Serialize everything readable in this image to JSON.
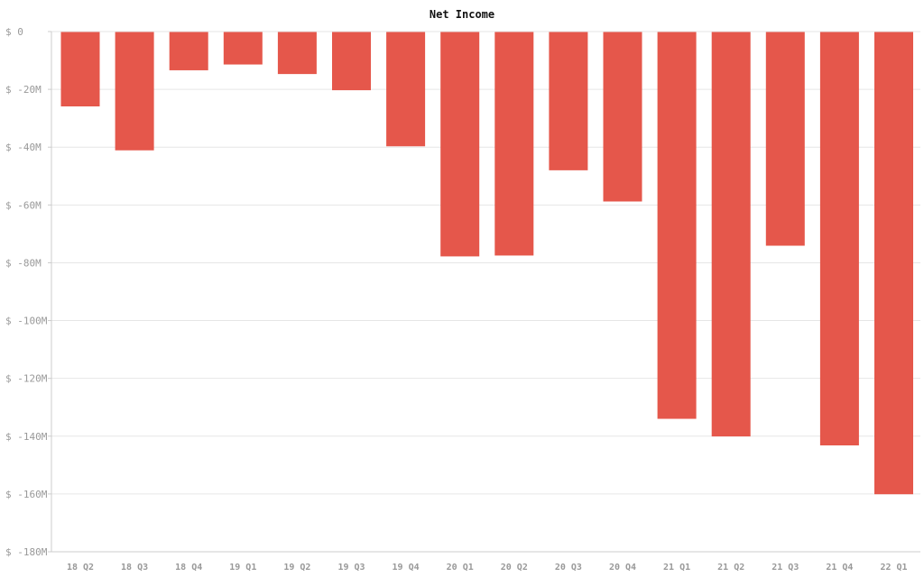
{
  "chart_data": {
    "type": "bar",
    "title": "Net Income",
    "xlabel": "",
    "ylabel": "",
    "categories": [
      "18 Q2",
      "18 Q3",
      "18 Q4",
      "19 Q1",
      "19 Q2",
      "19 Q3",
      "19 Q4",
      "20 Q1",
      "20 Q2",
      "20 Q3",
      "20 Q4",
      "21 Q1",
      "21 Q2",
      "21 Q3",
      "21 Q4",
      "22 Q1"
    ],
    "values": [
      -25.9,
      -41.1,
      -13.4,
      -11.4,
      -14.7,
      -20.3,
      -39.7,
      -77.8,
      -77.5,
      -48.0,
      -58.8,
      -134.0,
      -140.1,
      -74.1,
      -143.2,
      -160.1
    ],
    "ylim": [
      -180,
      0
    ],
    "yticks": [
      0,
      -20,
      -40,
      -60,
      -80,
      -100,
      -120,
      -140,
      -160,
      -180
    ],
    "ytick_labels": [
      "$ 0",
      "$ -20M",
      "$ -40M",
      "$ -60M",
      "$ -80M",
      "$ -100M",
      "$ -120M",
      "$ -140M",
      "$ -160M",
      "$ -180M"
    ],
    "grid": true,
    "legend": "none",
    "bar_color": "#e5574b",
    "grid_color": "#e6e6e6",
    "tick_label_color": "#999999",
    "axis_color": "#cccccc"
  }
}
